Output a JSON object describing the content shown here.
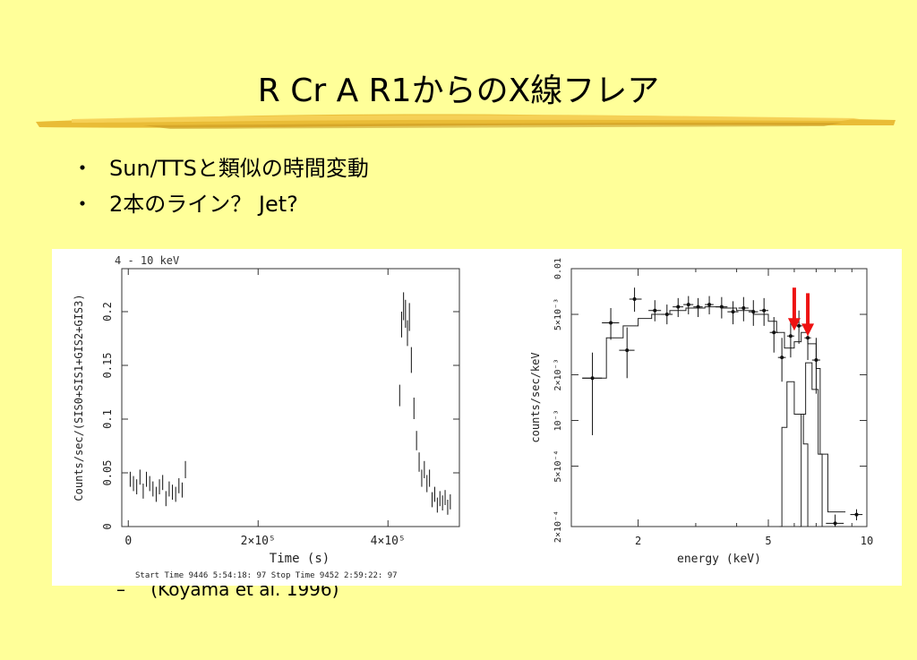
{
  "slide": {
    "title": "R Cr A R1からのX線フレア",
    "bullets": [
      "Sun/TTSと類似の時間変動",
      "2本のライン？ Jet?"
    ],
    "bullet_marker": "・",
    "citation_dash": "–",
    "citation": "(Koyama et al. 1996)",
    "colors": {
      "background": "#ffff99",
      "brush": "#e8b830",
      "arrow": "#ee1111"
    }
  },
  "chart_data": [
    {
      "type": "scatter",
      "title": "4 - 10 keV",
      "xlabel": "Time (s)",
      "ylabel": "Counts/sec/(SIS0+SIS1+GIS2+GIS3)",
      "xlim": [
        -10000,
        510000
      ],
      "ylim": [
        0,
        0.24
      ],
      "x_ticks": [
        {
          "v": 0,
          "label": "0"
        },
        {
          "v": 200000,
          "label": "2×10⁵"
        },
        {
          "v": 400000,
          "label": "4×10⁵"
        }
      ],
      "y_ticks": [
        {
          "v": 0,
          "label": "0"
        },
        {
          "v": 0.05,
          "label": "0.05"
        },
        {
          "v": 0.1,
          "label": "0.1"
        },
        {
          "v": 0.15,
          "label": "0.15"
        },
        {
          "v": 0.2,
          "label": "0.2"
        }
      ],
      "footer": "Start Time  9446  5:54:18: 97    Stop Time  9452  2:59:22: 97",
      "points": [
        {
          "x": 3000,
          "y": 0.044,
          "e": 0.007
        },
        {
          "x": 8000,
          "y": 0.04,
          "e": 0.007
        },
        {
          "x": 13000,
          "y": 0.037,
          "e": 0.007
        },
        {
          "x": 18000,
          "y": 0.046,
          "e": 0.007
        },
        {
          "x": 23000,
          "y": 0.033,
          "e": 0.007
        },
        {
          "x": 28000,
          "y": 0.044,
          "e": 0.007
        },
        {
          "x": 33000,
          "y": 0.04,
          "e": 0.007
        },
        {
          "x": 38000,
          "y": 0.035,
          "e": 0.007
        },
        {
          "x": 43000,
          "y": 0.03,
          "e": 0.007
        },
        {
          "x": 48000,
          "y": 0.037,
          "e": 0.007
        },
        {
          "x": 53000,
          "y": 0.041,
          "e": 0.007
        },
        {
          "x": 58000,
          "y": 0.026,
          "e": 0.007
        },
        {
          "x": 63000,
          "y": 0.035,
          "e": 0.007
        },
        {
          "x": 68000,
          "y": 0.032,
          "e": 0.007
        },
        {
          "x": 73000,
          "y": 0.03,
          "e": 0.007
        },
        {
          "x": 78000,
          "y": 0.038,
          "e": 0.007
        },
        {
          "x": 83000,
          "y": 0.034,
          "e": 0.007
        },
        {
          "x": 88000,
          "y": 0.053,
          "e": 0.008
        },
        {
          "x": 418000,
          "y": 0.122,
          "e": 0.01
        },
        {
          "x": 421000,
          "y": 0.188,
          "e": 0.012
        },
        {
          "x": 424000,
          "y": 0.205,
          "e": 0.013
        },
        {
          "x": 427000,
          "y": 0.198,
          "e": 0.013
        },
        {
          "x": 430000,
          "y": 0.18,
          "e": 0.012
        },
        {
          "x": 433000,
          "y": 0.195,
          "e": 0.013
        },
        {
          "x": 436000,
          "y": 0.155,
          "e": 0.012
        },
        {
          "x": 440000,
          "y": 0.11,
          "e": 0.01
        },
        {
          "x": 444000,
          "y": 0.08,
          "e": 0.009
        },
        {
          "x": 448000,
          "y": 0.06,
          "e": 0.009
        },
        {
          "x": 452000,
          "y": 0.045,
          "e": 0.008
        },
        {
          "x": 456000,
          "y": 0.053,
          "e": 0.008
        },
        {
          "x": 460000,
          "y": 0.04,
          "e": 0.008
        },
        {
          "x": 464000,
          "y": 0.045,
          "e": 0.008
        },
        {
          "x": 468000,
          "y": 0.025,
          "e": 0.007
        },
        {
          "x": 472000,
          "y": 0.03,
          "e": 0.007
        },
        {
          "x": 476000,
          "y": 0.02,
          "e": 0.007
        },
        {
          "x": 480000,
          "y": 0.026,
          "e": 0.007
        },
        {
          "x": 484000,
          "y": 0.022,
          "e": 0.007
        },
        {
          "x": 488000,
          "y": 0.027,
          "e": 0.007
        },
        {
          "x": 492000,
          "y": 0.018,
          "e": 0.007
        },
        {
          "x": 496000,
          "y": 0.023,
          "e": 0.007
        }
      ]
    },
    {
      "type": "scatter",
      "xlabel": "energy (keV)",
      "ylabel": "counts/sec/keV",
      "x_scale": "log",
      "y_scale": "log",
      "xlim": [
        1.25,
        10
      ],
      "ylim": [
        0.0002,
        0.01
      ],
      "x_ticks": [
        {
          "v": 2,
          "label": "2"
        },
        {
          "v": 5,
          "label": "5"
        },
        {
          "v": 10,
          "label": "10"
        }
      ],
      "y_ticks": [
        {
          "v": 0.0002,
          "label": "2×10⁻⁴"
        },
        {
          "v": 0.0005,
          "label": "5×10⁻⁴"
        },
        {
          "v": 0.001,
          "label": "10⁻³"
        },
        {
          "v": 0.002,
          "label": "2×10⁻³"
        },
        {
          "v": 0.005,
          "label": "5×10⁻³"
        },
        {
          "v": 0.01,
          "label": "0.01"
        }
      ],
      "points": [
        {
          "x": 1.45,
          "y": 0.0019,
          "xl": 1.35,
          "xh": 1.55,
          "yl": 0.0008,
          "yh": 0.0028
        },
        {
          "x": 1.65,
          "y": 0.0044,
          "xl": 1.55,
          "xh": 1.75,
          "yl": 0.0034,
          "yh": 0.0055
        },
        {
          "x": 1.85,
          "y": 0.0029,
          "xl": 1.75,
          "xh": 1.95,
          "yl": 0.0019,
          "yh": 0.0041
        },
        {
          "x": 1.95,
          "y": 0.0063,
          "xl": 1.88,
          "xh": 2.05,
          "yl": 0.0052,
          "yh": 0.0075
        },
        {
          "x": 2.25,
          "y": 0.0053,
          "xl": 2.15,
          "xh": 2.35,
          "yl": 0.0045,
          "yh": 0.0062
        },
        {
          "x": 2.45,
          "y": 0.005,
          "xl": 2.35,
          "xh": 2.55,
          "yl": 0.0043,
          "yh": 0.0058
        },
        {
          "x": 2.65,
          "y": 0.0056,
          "xl": 2.55,
          "xh": 2.75,
          "yl": 0.0048,
          "yh": 0.0064
        },
        {
          "x": 2.85,
          "y": 0.0058,
          "xl": 2.75,
          "xh": 2.95,
          "yl": 0.005,
          "yh": 0.0066
        },
        {
          "x": 3.05,
          "y": 0.0056,
          "xl": 2.95,
          "xh": 3.15,
          "yl": 0.0048,
          "yh": 0.0064
        },
        {
          "x": 3.3,
          "y": 0.0058,
          "xl": 3.2,
          "xh": 3.4,
          "yl": 0.005,
          "yh": 0.0066
        },
        {
          "x": 3.6,
          "y": 0.0056,
          "xl": 3.45,
          "xh": 3.75,
          "yl": 0.0047,
          "yh": 0.0065
        },
        {
          "x": 3.9,
          "y": 0.0052,
          "xl": 3.75,
          "xh": 4.05,
          "yl": 0.0043,
          "yh": 0.0061
        },
        {
          "x": 4.2,
          "y": 0.0055,
          "xl": 4.05,
          "xh": 4.35,
          "yl": 0.0045,
          "yh": 0.0065
        },
        {
          "x": 4.5,
          "y": 0.0052,
          "xl": 4.35,
          "xh": 4.65,
          "yl": 0.0042,
          "yh": 0.0062
        },
        {
          "x": 4.85,
          "y": 0.0053,
          "xl": 4.7,
          "xh": 5.0,
          "yl": 0.0042,
          "yh": 0.0064
        },
        {
          "x": 5.2,
          "y": 0.0038,
          "xl": 5.05,
          "xh": 5.35,
          "yl": 0.0028,
          "yh": 0.0048
        },
        {
          "x": 5.5,
          "y": 0.0026,
          "xl": 5.35,
          "xh": 5.65,
          "yl": 0.0018,
          "yh": 0.0035
        },
        {
          "x": 5.85,
          "y": 0.0036,
          "xl": 5.7,
          "xh": 6.0,
          "yl": 0.0026,
          "yh": 0.0047
        },
        {
          "x": 6.2,
          "y": 0.0042,
          "xl": 6.05,
          "xh": 6.35,
          "yl": 0.0032,
          "yh": 0.0053
        },
        {
          "x": 6.6,
          "y": 0.0035,
          "xl": 6.45,
          "xh": 6.75,
          "yl": 0.0025,
          "yh": 0.0046
        },
        {
          "x": 7.0,
          "y": 0.0025,
          "xl": 6.8,
          "xh": 7.2,
          "yl": 0.0015,
          "yh": 0.0035
        },
        {
          "x": 8.0,
          "y": 0.00021,
          "xl": 7.5,
          "xh": 8.5,
          "yl": 0.0002,
          "yh": 0.00024
        },
        {
          "x": 9.3,
          "y": 0.00024,
          "xl": 8.9,
          "xh": 9.7,
          "yl": 0.00022,
          "yh": 0.00026
        }
      ],
      "models": [
        [
          [
            1.35,
            0.0019
          ],
          [
            1.6,
            0.0035
          ],
          [
            1.8,
            0.0042
          ],
          [
            2.0,
            0.0047
          ],
          [
            2.2,
            0.005
          ],
          [
            2.5,
            0.0053
          ],
          [
            2.8,
            0.0055
          ],
          [
            3.2,
            0.0056
          ],
          [
            3.6,
            0.0055
          ],
          [
            4.0,
            0.0053
          ],
          [
            4.5,
            0.005
          ],
          [
            5.0,
            0.0045
          ],
          [
            5.3,
            0.0038
          ],
          [
            5.6,
            0.003
          ],
          [
            6.0,
            0.0033
          ],
          [
            6.3,
            0.0038
          ],
          [
            6.6,
            0.0032
          ],
          [
            7.0,
            0.0022
          ],
          [
            7.2,
            0.0006
          ],
          [
            7.6,
            0.00025
          ],
          [
            8.6,
            0.00025
          ]
        ],
        [
          [
            5.4,
            0.0002
          ],
          [
            5.5,
            0.0009
          ],
          [
            5.7,
            0.0018
          ],
          [
            6.0,
            0.0011
          ],
          [
            6.4,
            0.0007
          ],
          [
            6.6,
            0.0002
          ]
        ],
        [
          [
            6.2,
            0.0002
          ],
          [
            6.3,
            0.0011
          ],
          [
            6.5,
            0.0024
          ],
          [
            6.8,
            0.0016
          ],
          [
            7.1,
            0.0006
          ],
          [
            7.3,
            0.0002
          ]
        ]
      ],
      "arrows": [
        {
          "x": 6.0,
          "y": 0.0037
        },
        {
          "x": 6.6,
          "y": 0.0034
        }
      ]
    }
  ]
}
